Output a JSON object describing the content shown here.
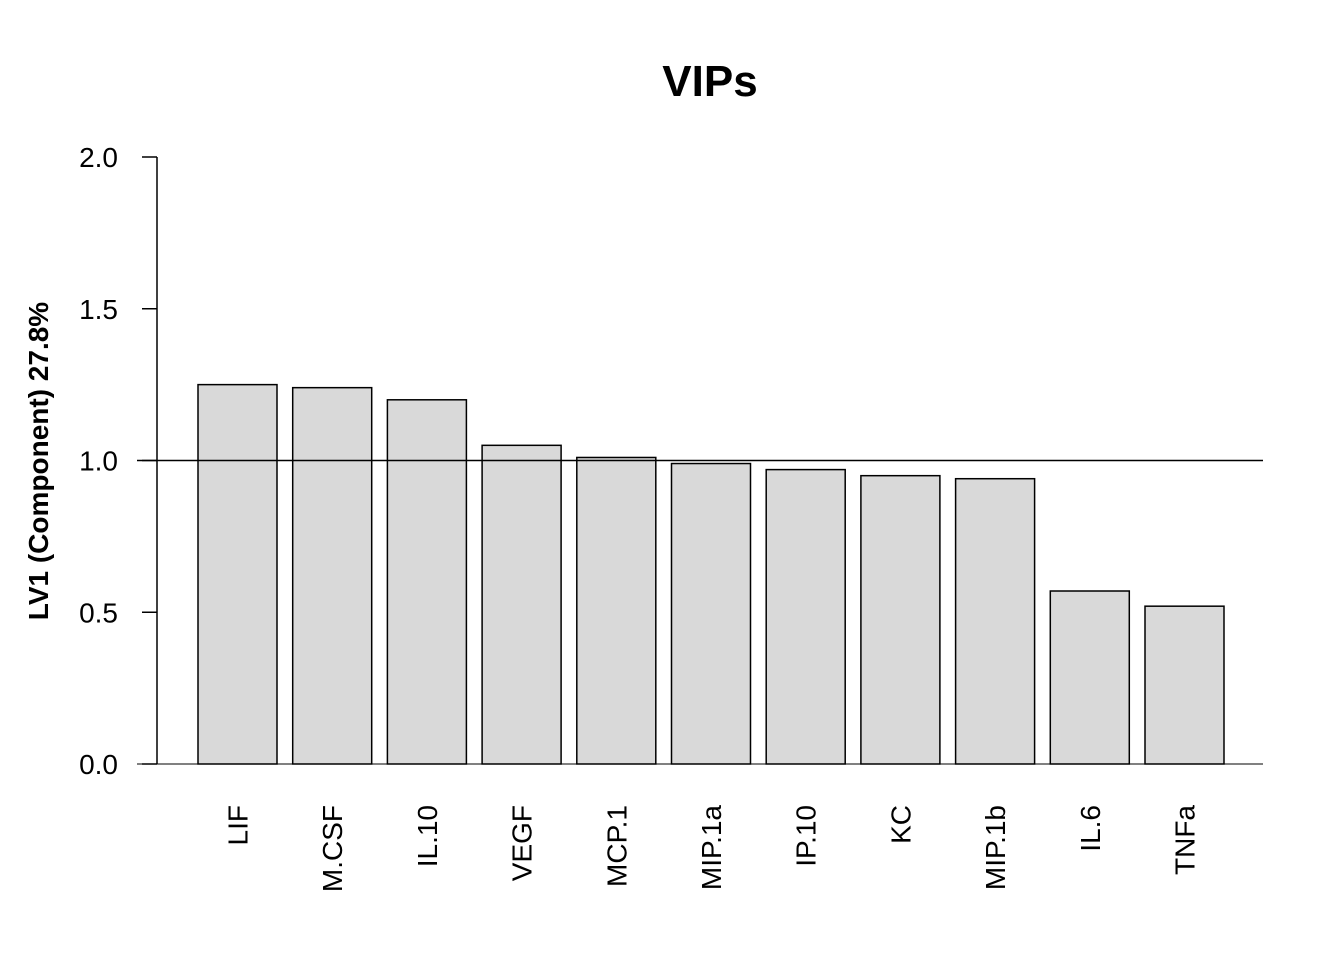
{
  "chart_data": {
    "type": "bar",
    "title": "VIPs",
    "xlabel": "",
    "ylabel": "LV1 (Component) 27.8%",
    "categories": [
      "LIF",
      "M.CSF",
      "IL.10",
      "VEGF",
      "MCP.1",
      "MIP.1a",
      "IP.10",
      "KC",
      "MIP.1b",
      "IL.6",
      "TNFa"
    ],
    "values": [
      1.25,
      1.24,
      1.2,
      1.05,
      1.01,
      0.99,
      0.97,
      0.95,
      0.94,
      0.57,
      0.52
    ],
    "ylim": [
      0,
      2
    ],
    "yticks": [
      "0.0",
      "0.5",
      "1.0",
      "1.5",
      "2.0"
    ],
    "reference_line": 1.0,
    "bar_color": "#d9d9d9",
    "grid": false,
    "legend": "none"
  }
}
